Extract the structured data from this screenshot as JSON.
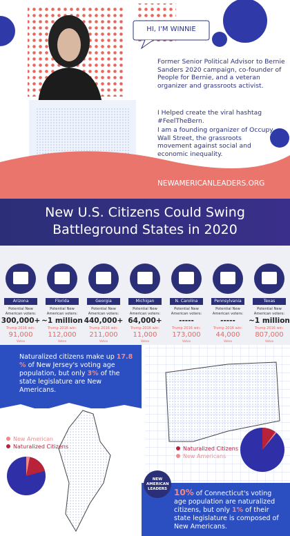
{
  "header": {
    "greeting": "HI, I'M WINNIE",
    "bio": [
      "Former Senior Political Advisor to Bernie Sanders 2020 campaign, co-founder of People for Bernie, and a veteran organizer and grassroots activist.",
      "I Helped create the viral hashtag #FeelTheBern.",
      "I am a founding organizer of Occupy Wall Street, the grassroots movement against social and economic inequality."
    ],
    "url": "NEWAMERICANLEADERS.ORG"
  },
  "banner": {
    "title": "New U.S. Citizens Could Swing Battleground States in 2020"
  },
  "states": {
    "voters_label": "Potential New American voters:",
    "trump_label": "Trump 2016 win:",
    "votes_label": "Votes",
    "items": [
      {
        "name": "Arizona",
        "voters": "300,000+",
        "trump": "91,000"
      },
      {
        "name": "Florida",
        "voters": "~1 million",
        "trump": "112,000"
      },
      {
        "name": "Georgia",
        "voters": "440,000+",
        "trump": "211,000"
      },
      {
        "name": "Michigan",
        "voters": "64,000+",
        "trump": "11,000"
      },
      {
        "name": "N. Carolina",
        "voters": "-----",
        "trump": "173,000"
      },
      {
        "name": "Pennsylvania",
        "voters": "-----",
        "trump": "44,000"
      },
      {
        "name": "Texas",
        "voters": "~1 million",
        "trump": "807,000"
      }
    ]
  },
  "new_jersey": {
    "text_before": "Naturalized citizens make up",
    "share": {
      "value": 17.8,
      "label": "17.8 %"
    },
    "text_middle": "of New Jersey's voting age population, but only",
    "legislature": {
      "value": 3,
      "label": "3%"
    },
    "text_after": "of the state legislature are New Americans.",
    "legend": [
      {
        "name": "New American",
        "color": "#f08a8a"
      },
      {
        "name": "Naturalized Citizens",
        "color": "#b8233a"
      }
    ]
  },
  "connecticut": {
    "share": {
      "value": 10,
      "label": "10%"
    },
    "text_middle": "of Connecticut's voting age population are naturalized citizens, but only",
    "legislature": {
      "value": 1,
      "label": "1%"
    },
    "text_after": "of their state legislature is composed of New Americans.",
    "legend": [
      {
        "name": "Naturalized Citizens",
        "color": "#b8233a"
      },
      {
        "name": "New Americans",
        "color": "#f08a8a"
      }
    ]
  },
  "logo": "NEW AMERICAN LEADERS"
}
